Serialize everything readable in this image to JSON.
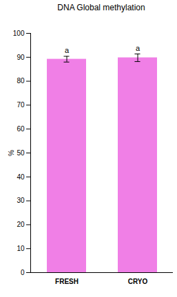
{
  "chart_data": {
    "type": "bar",
    "title": "DNA Global methylation",
    "categories": [
      "FRESH",
      "CRYO"
    ],
    "values": [
      89.2,
      89.8
    ],
    "errors": [
      1.2,
      1.6
    ],
    "annotations": [
      "a",
      "a"
    ],
    "color": "#f07fe6",
    "ylabel": "%",
    "ylim": [
      0,
      100
    ],
    "yticks": [
      0,
      10,
      20,
      30,
      40,
      50,
      60,
      70,
      80,
      90,
      100
    ],
    "grid": false
  }
}
